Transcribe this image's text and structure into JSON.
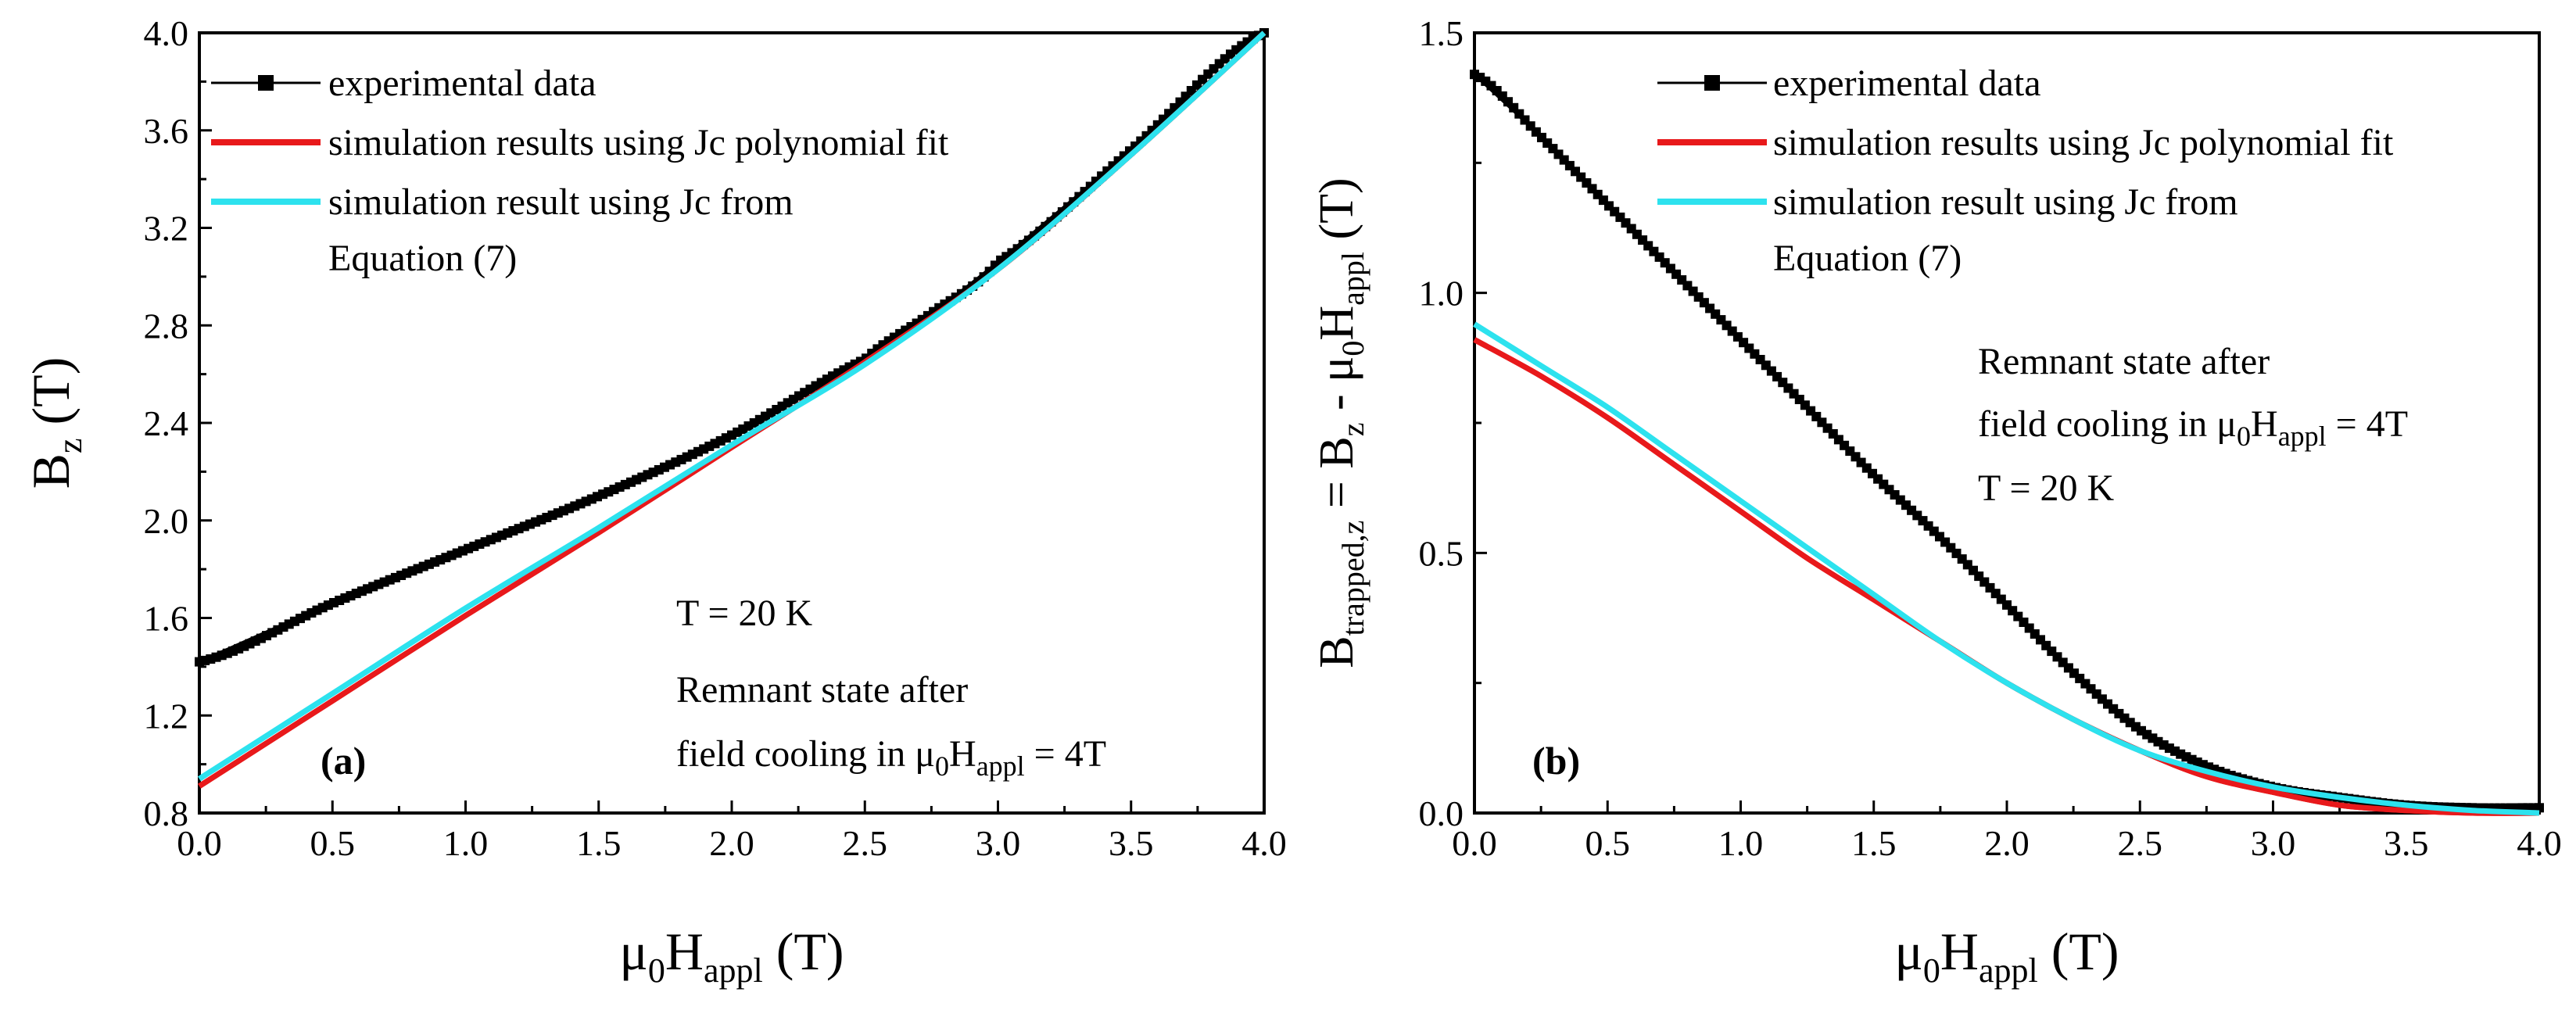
{
  "chart_data": [
    {
      "type": "line",
      "panel": "(a)",
      "xlabel": {
        "main": "μ",
        "sub1": "0",
        "main2": "H",
        "sub2": "appl",
        "unit": " (T)"
      },
      "ylabel": {
        "main": "B",
        "sub": "z",
        "unit": " (T)"
      },
      "xlim": [
        0.0,
        4.0
      ],
      "ylim": [
        0.8,
        4.0
      ],
      "xticks": [
        "0.0",
        "0.5",
        "1.0",
        "1.5",
        "2.0",
        "2.5",
        "3.0",
        "3.5",
        "4.0"
      ],
      "yticks": [
        "0.8",
        "1.2",
        "1.6",
        "2.0",
        "2.4",
        "2.8",
        "3.2",
        "3.6",
        "4.0"
      ],
      "legend": [
        {
          "name": "experimental data",
          "color": "#000000",
          "marker": "square"
        },
        {
          "name": "simulation results using Jc polynomial fit",
          "color": "#e8191b"
        },
        {
          "name": "simulation result using Jc from",
          "name2": "Equation (7)",
          "color": "#2de2ee"
        }
      ],
      "annotations": {
        "temp": "T = 20 K",
        "state1": "Remnant state after",
        "state2": "field cooling in ",
        "state2_main": "μ",
        "state2_sub1": "0",
        "state2_main2": "H",
        "state2_sub2": "appl",
        "state2_tail": " = 4T"
      },
      "series": [
        {
          "name": "experimental data",
          "color": "#000000",
          "x": [
            0.0,
            0.5,
            1.0,
            1.5,
            2.0,
            2.5,
            2.75,
            3.0,
            3.5,
            4.0
          ],
          "y": [
            1.42,
            1.66,
            1.88,
            2.1,
            2.35,
            2.66,
            2.85,
            3.06,
            3.52,
            4.0
          ]
        },
        {
          "name": "simulation results using Jc polynomial fit",
          "color": "#e8191b",
          "x": [
            0.0,
            0.5,
            1.0,
            1.5,
            2.0,
            2.5,
            3.0,
            3.5,
            4.0
          ],
          "y": [
            0.91,
            1.26,
            1.61,
            1.95,
            2.3,
            2.65,
            3.03,
            3.5,
            4.0
          ]
        },
        {
          "name": "simulation result using Jc from Equation (7)",
          "color": "#2de2ee",
          "x": [
            0.0,
            0.5,
            1.0,
            1.5,
            2.0,
            2.5,
            3.0,
            3.5,
            4.0
          ],
          "y": [
            0.94,
            1.29,
            1.64,
            1.97,
            2.31,
            2.64,
            3.03,
            3.5,
            4.0
          ]
        }
      ]
    },
    {
      "type": "line",
      "panel": "(b)",
      "xlabel": {
        "main": "μ",
        "sub1": "0",
        "main2": "H",
        "sub2": "appl",
        "unit": " (T)"
      },
      "ylabel": {
        "b": "B",
        "sub1": "trapped,z",
        "eq": " = B",
        "sub2": "z",
        "minus": " - μ",
        "sub3": "0",
        "h": "H",
        "sub4": "appl",
        "unit": " (T)"
      },
      "xlim": [
        0.0,
        4.0
      ],
      "ylim": [
        0.0,
        1.5
      ],
      "xticks": [
        "0.0",
        "0.5",
        "1.0",
        "1.5",
        "2.0",
        "2.5",
        "3.0",
        "3.5",
        "4.0"
      ],
      "yticks": [
        "0.0",
        "0.5",
        "1.0",
        "1.5"
      ],
      "legend": [
        {
          "name": "experimental data",
          "color": "#000000",
          "marker": "square"
        },
        {
          "name": "simulation results using Jc polynomial fit",
          "color": "#e8191b"
        },
        {
          "name": "simulation result using Jc from",
          "name2": "Equation (7)",
          "color": "#2de2ee"
        }
      ],
      "annotations": {
        "state1": "Remnant state after",
        "state2": "field cooling in ",
        "state2_main": "μ",
        "state2_sub1": "0",
        "state2_main2": "H",
        "state2_sub2": "appl",
        "state2_tail": " = 4T",
        "temp": "T = 20 K"
      },
      "series": [
        {
          "name": "experimental data",
          "color": "#000000",
          "x": [
            0.0,
            0.25,
            0.5,
            0.75,
            1.0,
            1.25,
            1.5,
            1.75,
            2.0,
            2.25,
            2.5,
            2.75,
            3.0,
            3.25,
            3.5,
            3.75,
            4.0
          ],
          "y": [
            1.42,
            1.3,
            1.17,
            1.04,
            0.91,
            0.78,
            0.65,
            0.53,
            0.4,
            0.27,
            0.16,
            0.09,
            0.05,
            0.03,
            0.015,
            0.01,
            0.01
          ]
        },
        {
          "name": "simulation results using Jc polynomial fit",
          "color": "#e8191b",
          "x": [
            0.0,
            0.25,
            0.5,
            0.75,
            1.0,
            1.25,
            1.5,
            1.75,
            2.0,
            2.25,
            2.5,
            2.75,
            3.0,
            3.25,
            3.5,
            3.75,
            4.0
          ],
          "y": [
            0.91,
            0.84,
            0.76,
            0.67,
            0.58,
            0.49,
            0.41,
            0.33,
            0.25,
            0.18,
            0.12,
            0.07,
            0.04,
            0.015,
            0.005,
            0.0,
            0.0
          ]
        },
        {
          "name": "simulation result using Jc from Equation (7)",
          "color": "#2de2ee",
          "x": [
            0.0,
            0.25,
            0.5,
            0.75,
            1.0,
            1.25,
            1.5,
            1.75,
            2.0,
            2.25,
            2.5,
            2.75,
            3.0,
            3.25,
            3.5,
            3.75,
            4.0
          ],
          "y": [
            0.94,
            0.86,
            0.78,
            0.69,
            0.6,
            0.51,
            0.42,
            0.33,
            0.25,
            0.18,
            0.12,
            0.08,
            0.05,
            0.03,
            0.015,
            0.005,
            0.0
          ]
        }
      ]
    }
  ]
}
